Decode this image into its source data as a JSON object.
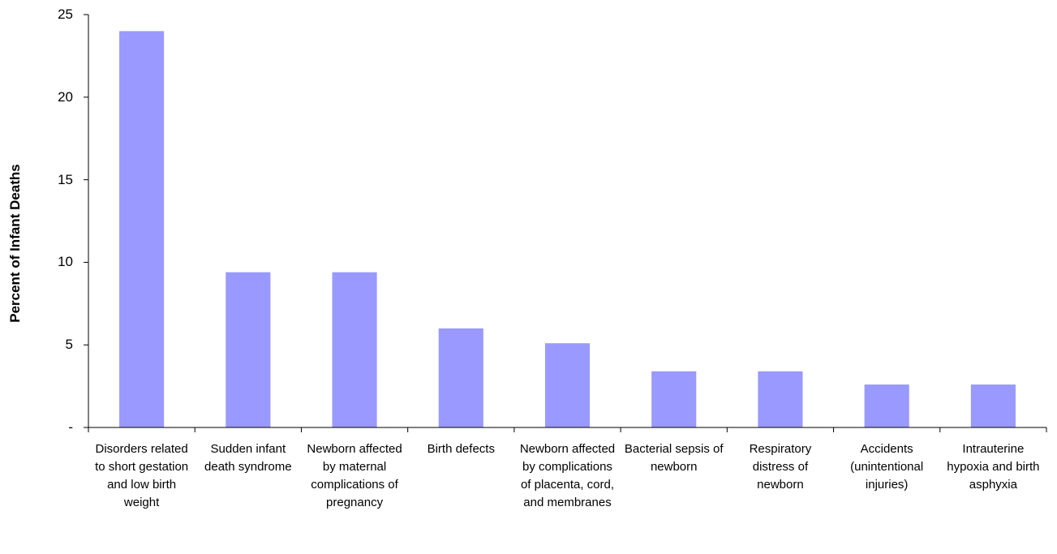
{
  "chart_data": {
    "type": "bar",
    "ylabel": "Percent of Infant Deaths",
    "ylim": [
      0,
      25
    ],
    "yticks": [
      {
        "value": 25,
        "label": "25"
      },
      {
        "value": 20,
        "label": "20"
      },
      {
        "value": 15,
        "label": "15"
      },
      {
        "value": 10,
        "label": "10"
      },
      {
        "value": 5,
        "label": "5"
      },
      {
        "value": 0,
        "label": "-"
      }
    ],
    "categories": [
      "Disorders related to short gestation and low birth weight",
      "Sudden infant death syndrome",
      "Newborn affected by maternal complications of pregnancy",
      "Birth defects",
      "Newborn affected by complications of placenta, cord, and membranes",
      "Bacterial sepsis of newborn",
      "Respiratory distress of newborn",
      "Accidents (unintentional injuries)",
      "Intrauterine hypoxia and birth asphyxia"
    ],
    "values": [
      24.0,
      9.4,
      9.4,
      6.0,
      5.1,
      3.4,
      3.4,
      2.6,
      2.6
    ],
    "bar_color": "#9999ff",
    "grid": false,
    "legend": "none"
  }
}
